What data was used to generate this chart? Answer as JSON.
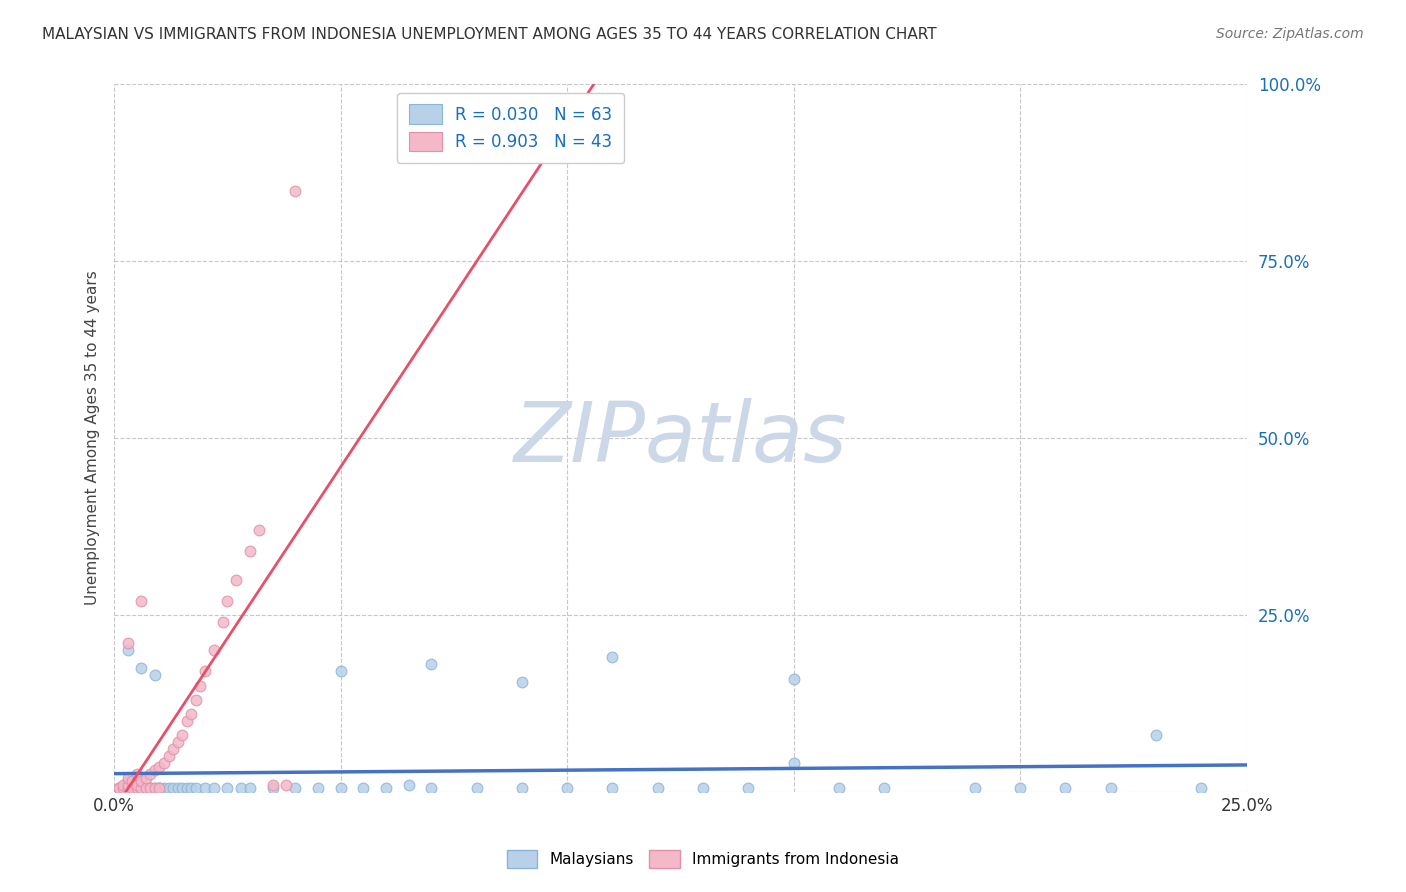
{
  "title": "MALAYSIAN VS IMMIGRANTS FROM INDONESIA UNEMPLOYMENT AMONG AGES 35 TO 44 YEARS CORRELATION CHART",
  "source": "Source: ZipAtlas.com",
  "ylabel": "Unemployment Among Ages 35 to 44 years",
  "xlim": [
    0.0,
    0.25
  ],
  "ylim": [
    0.0,
    1.0
  ],
  "xticks": [
    0.0,
    0.05,
    0.1,
    0.15,
    0.2,
    0.25
  ],
  "yticks": [
    0.0,
    0.25,
    0.5,
    0.75,
    1.0
  ],
  "xtick_labels": [
    "0.0%",
    "",
    "",
    "",
    "",
    "25.0%"
  ],
  "ytick_labels": [
    "",
    "25.0%",
    "50.0%",
    "75.0%",
    "100.0%"
  ],
  "blue_R": 0.03,
  "blue_N": 63,
  "pink_R": 0.903,
  "pink_N": 43,
  "blue_color": "#b8d0e8",
  "blue_edge": "#8ab4d8",
  "blue_line_color": "#4472c4",
  "pink_color": "#f4b8c8",
  "pink_edge": "#e090a8",
  "pink_line_color": "#e8506a",
  "legend_R_color": "#1a6ec0",
  "background_color": "#ffffff",
  "grid_color": "#c8c8c8",
  "watermark_text": "ZIPatlas",
  "watermark_color": "#ccd8e8",
  "blue_scatter_x": [
    0.001,
    0.002,
    0.002,
    0.003,
    0.003,
    0.004,
    0.004,
    0.005,
    0.005,
    0.006,
    0.006,
    0.007,
    0.007,
    0.008,
    0.008,
    0.009,
    0.01,
    0.01,
    0.011,
    0.012,
    0.013,
    0.014,
    0.015,
    0.016,
    0.017,
    0.018,
    0.02,
    0.022,
    0.025,
    0.028,
    0.03,
    0.035,
    0.04,
    0.045,
    0.05,
    0.055,
    0.06,
    0.065,
    0.07,
    0.08,
    0.09,
    0.1,
    0.11,
    0.12,
    0.13,
    0.14,
    0.15,
    0.16,
    0.17,
    0.19,
    0.2,
    0.21,
    0.22,
    0.23,
    0.24,
    0.05,
    0.07,
    0.09,
    0.11,
    0.15,
    0.003,
    0.006,
    0.009
  ],
  "blue_scatter_y": [
    0.005,
    0.005,
    0.005,
    0.005,
    0.015,
    0.005,
    0.005,
    0.005,
    0.005,
    0.005,
    0.005,
    0.005,
    0.005,
    0.005,
    0.005,
    0.005,
    0.005,
    0.005,
    0.005,
    0.005,
    0.005,
    0.005,
    0.005,
    0.005,
    0.005,
    0.005,
    0.005,
    0.005,
    0.005,
    0.005,
    0.005,
    0.005,
    0.005,
    0.005,
    0.005,
    0.005,
    0.005,
    0.01,
    0.005,
    0.005,
    0.005,
    0.005,
    0.005,
    0.005,
    0.005,
    0.005,
    0.04,
    0.005,
    0.005,
    0.005,
    0.005,
    0.005,
    0.005,
    0.08,
    0.005,
    0.17,
    0.18,
    0.155,
    0.19,
    0.16,
    0.2,
    0.175,
    0.165
  ],
  "pink_scatter_x": [
    0.001,
    0.001,
    0.002,
    0.002,
    0.003,
    0.003,
    0.003,
    0.004,
    0.004,
    0.005,
    0.005,
    0.005,
    0.006,
    0.006,
    0.007,
    0.007,
    0.008,
    0.008,
    0.009,
    0.009,
    0.01,
    0.01,
    0.011,
    0.012,
    0.013,
    0.014,
    0.015,
    0.016,
    0.017,
    0.018,
    0.019,
    0.02,
    0.022,
    0.024,
    0.025,
    0.027,
    0.03,
    0.032,
    0.035,
    0.038,
    0.04,
    0.003,
    0.006
  ],
  "pink_scatter_y": [
    0.005,
    0.005,
    0.005,
    0.01,
    0.005,
    0.01,
    0.02,
    0.005,
    0.015,
    0.005,
    0.01,
    0.025,
    0.005,
    0.015,
    0.005,
    0.02,
    0.005,
    0.025,
    0.005,
    0.03,
    0.005,
    0.035,
    0.04,
    0.05,
    0.06,
    0.07,
    0.08,
    0.1,
    0.11,
    0.13,
    0.15,
    0.17,
    0.2,
    0.24,
    0.27,
    0.3,
    0.34,
    0.37,
    0.01,
    0.01,
    0.85,
    0.21,
    0.27
  ],
  "marker_size": 60
}
